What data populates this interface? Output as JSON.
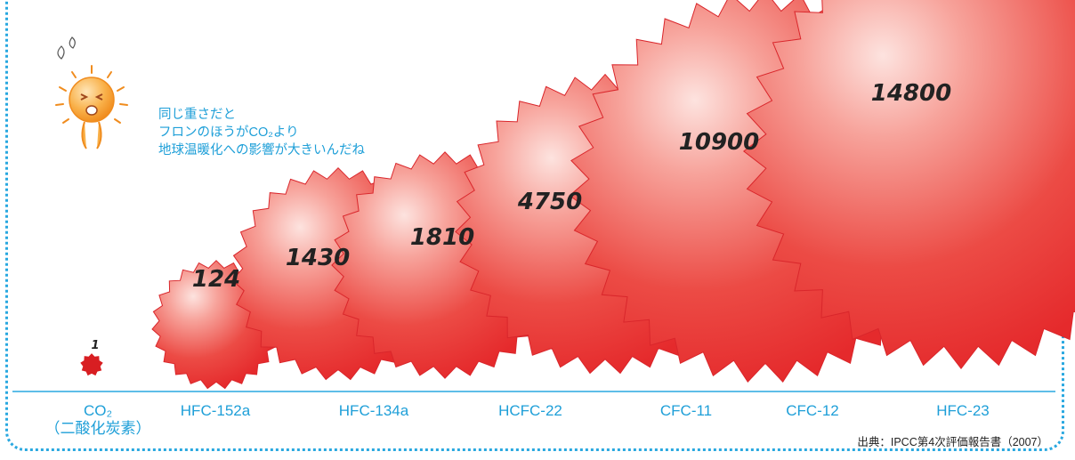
{
  "chart_data": {
    "type": "scatter",
    "categories": [
      "CO2",
      "HFC-152a",
      "HFC-134a",
      "HCFC-22",
      "CFC-11",
      "CFC-12",
      "HFC-23"
    ],
    "category_labels": [
      [
        "CO₂",
        "（二酸化炭素）"
      ],
      [
        "HFC-152a"
      ],
      [
        "HFC-134a"
      ],
      [
        "HCFC-22"
      ],
      [
        "CFC-11"
      ],
      [
        "CFC-12"
      ],
      [
        "HFC-23"
      ]
    ],
    "values": [
      1,
      124,
      1430,
      1810,
      4750,
      10900,
      14800
    ],
    "value_labels": [
      "1",
      "124",
      "1430",
      "1810",
      "4750",
      "10900",
      "14800"
    ],
    "marker_color": "#e8282c",
    "axis_color": "#29a8e0"
  },
  "mascot": {
    "comment_lines": [
      "同じ重さだと",
      "フロンのほうがCO₂より",
      "地球温暖化への影響が大きいんだね"
    ]
  },
  "source": "出典：IPCC第4次評価報告書（2007）",
  "colors": {
    "frame": "#29a8e0",
    "text_blue": "#1e9fd8",
    "ball": "#e8282c"
  }
}
